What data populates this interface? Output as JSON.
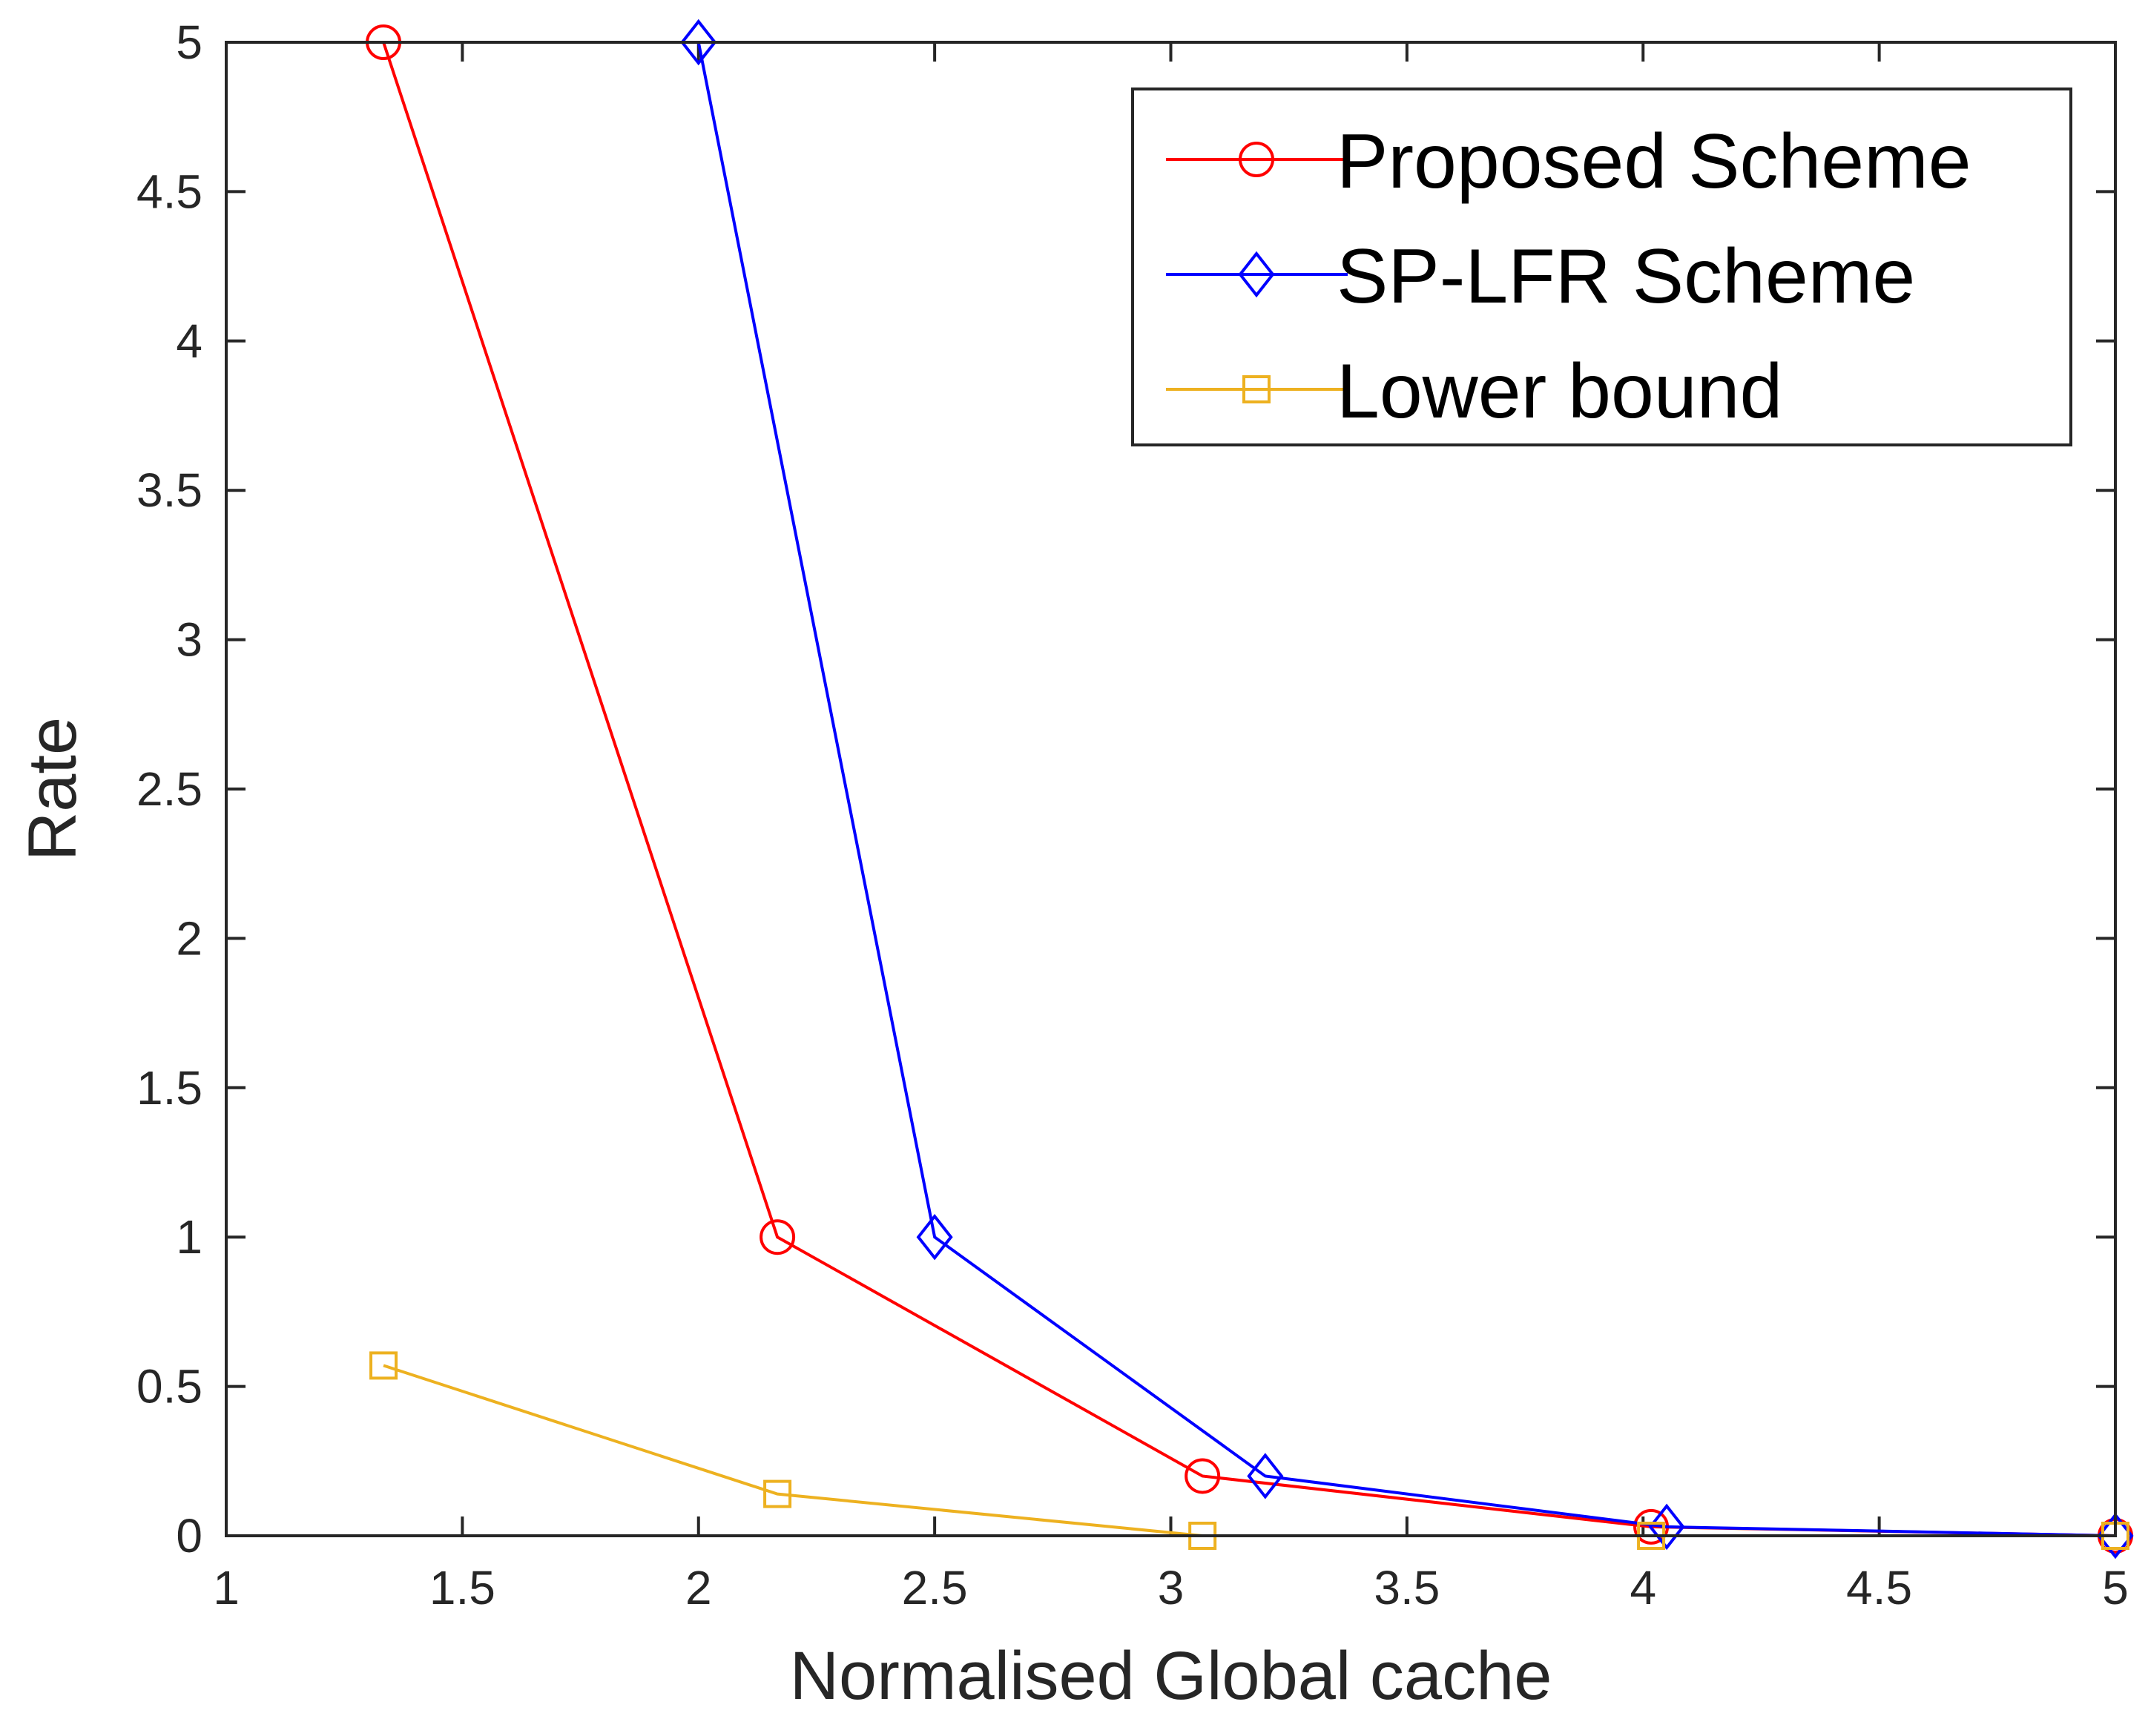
{
  "chart_data": {
    "type": "line",
    "title": "",
    "xlabel": "Normalised Global cache",
    "ylabel": "Rate",
    "xlim": [
      1,
      5
    ],
    "ylim": [
      0,
      5
    ],
    "xticks": [
      1,
      1.5,
      2,
      2.5,
      3,
      3.5,
      4,
      4.5,
      5
    ],
    "yticks": [
      0,
      0.5,
      1,
      1.5,
      2,
      2.5,
      3,
      3.5,
      4,
      4.5,
      5
    ],
    "xtick_labels": [
      "1",
      "1.5",
      "2",
      "2.5",
      "3",
      "3.5",
      "4",
      "4.5",
      "5"
    ],
    "ytick_labels": [
      "0",
      "0.5",
      "1",
      "1.5",
      "2",
      "2.5",
      "3",
      "3.5",
      "4",
      "4.5",
      "5"
    ],
    "grid": false,
    "legend_position": "top-right",
    "series": [
      {
        "name": "Proposed Scheme",
        "color": "#ff0000",
        "marker": "circle",
        "x": [
          1.333,
          2.167,
          3.067,
          4.017,
          5
        ],
        "y": [
          5,
          1,
          0.2,
          0.03,
          0
        ]
      },
      {
        "name": "SP-LFR Scheme",
        "color": "#0000ff",
        "marker": "diamond",
        "x": [
          2,
          2.5,
          3.2,
          4.05,
          5
        ],
        "y": [
          5,
          1,
          0.2,
          0.03,
          0
        ]
      },
      {
        "name": "Lower bound",
        "color": "#edb120",
        "marker": "square",
        "x": [
          1.333,
          2.167,
          3.067,
          4.017,
          5
        ],
        "y": [
          0.57,
          0.14,
          0,
          0,
          0
        ]
      }
    ]
  }
}
